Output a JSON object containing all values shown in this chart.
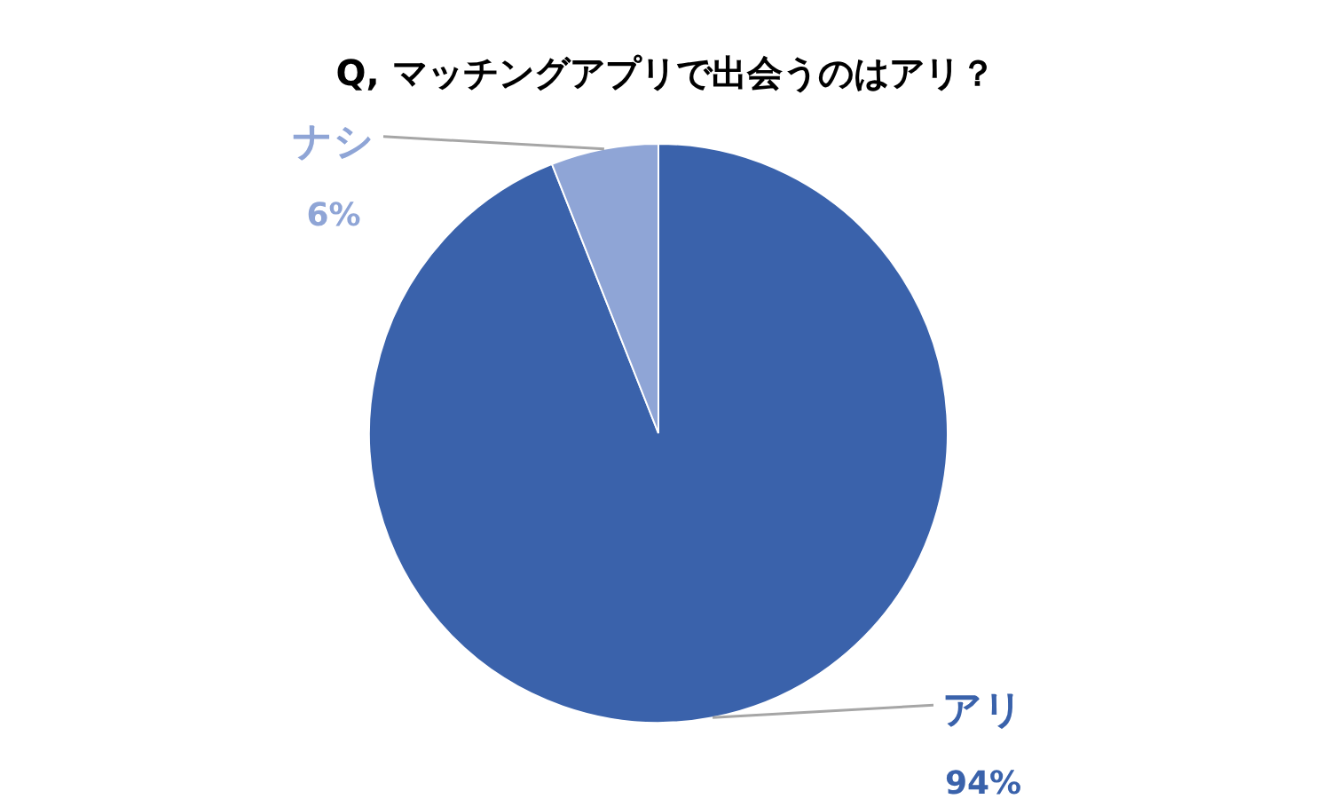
{
  "chart_data": {
    "type": "pie",
    "title": "Q, マッチングアプリで出会うのはアリ？",
    "categories": [
      "アリ",
      "ナシ"
    ],
    "values": [
      94,
      6
    ],
    "colors": [
      "#3a62ab",
      "#8fa5d6"
    ],
    "value_labels": [
      "94%",
      "6%"
    ]
  }
}
